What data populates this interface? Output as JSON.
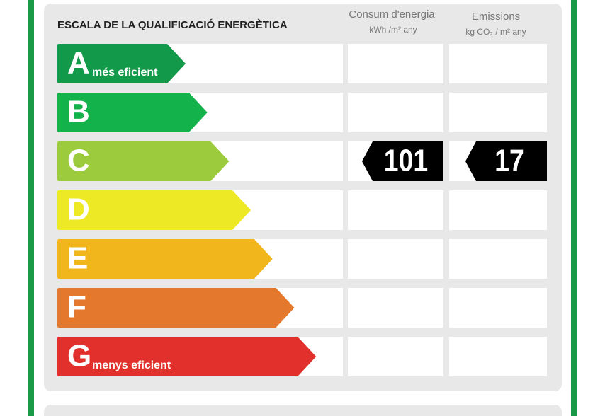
{
  "title": "ESCALA DE LA QUALIFICACIÓ ENERGÈTICA",
  "columns": [
    {
      "title": "Consum d'energia",
      "unit": "kWh /m² any"
    },
    {
      "title": "Emissions",
      "unit": "kg CO₂ / m² any"
    }
  ],
  "rows": [
    {
      "letter": "A",
      "label": "més eficient",
      "color": "#12994a"
    },
    {
      "letter": "B",
      "color": "#14b24b"
    },
    {
      "letter": "C",
      "color": "#9ccc3d"
    },
    {
      "letter": "D",
      "color": "#ede924"
    },
    {
      "letter": "E",
      "color": "#f1b61b"
    },
    {
      "letter": "F",
      "color": "#e4792d"
    },
    {
      "letter": "G",
      "label": "menys eficient",
      "color": "#e2312d"
    }
  ],
  "rating": {
    "energy": 101,
    "emissions": 17
  }
}
